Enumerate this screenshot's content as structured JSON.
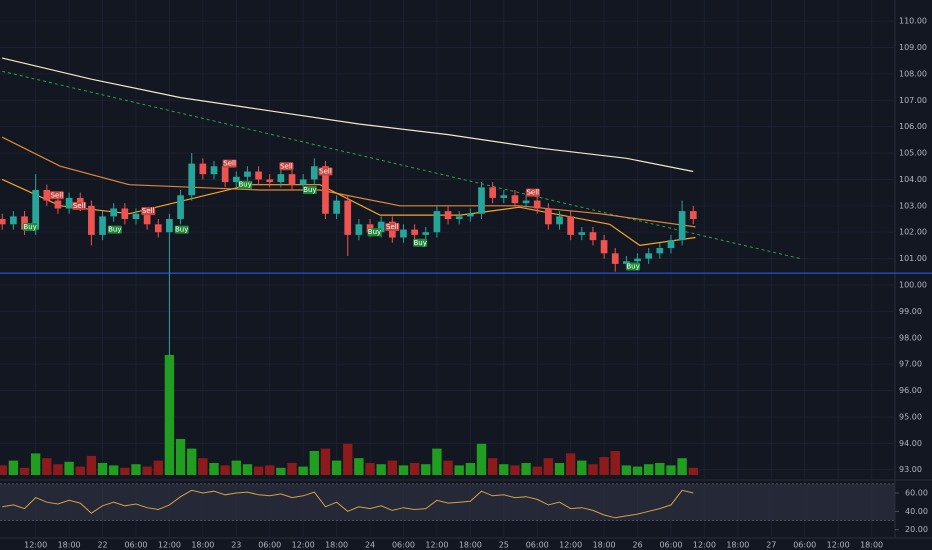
{
  "chart_data": {
    "type": "candlestick",
    "open": [
      102.5,
      102.3,
      102.6,
      102.1,
      103.6,
      103.2,
      102.9,
      103.3,
      103.0,
      101.9,
      102.6,
      102.9,
      102.5,
      102.7,
      102.3,
      102.0,
      102.5,
      103.4,
      104.6,
      104.2,
      104.5,
      103.9,
      104.1,
      104.3,
      104.0,
      103.9,
      104.2,
      103.8,
      104.0,
      104.5,
      102.7,
      103.2,
      101.9,
      102.3,
      102.0,
      102.4,
      101.8,
      102.1,
      101.9,
      102.0,
      102.8,
      102.5,
      102.6,
      102.7,
      103.7,
      103.3,
      103.4,
      103.1,
      103.2,
      102.9,
      102.3,
      102.6,
      101.9,
      102.0,
      101.7,
      101.2,
      100.8,
      100.9,
      101.0,
      101.2,
      101.4,
      101.7,
      102.8
    ],
    "high": [
      102.7,
      102.8,
      102.8,
      104.2,
      103.8,
      103.4,
      103.5,
      103.5,
      103.2,
      102.8,
      103.1,
      103.1,
      102.9,
      102.9,
      102.5,
      102.7,
      103.6,
      105.0,
      104.8,
      104.7,
      104.7,
      104.3,
      104.5,
      104.5,
      104.2,
      104.4,
      104.4,
      104.2,
      104.8,
      104.7,
      103.4,
      103.4,
      102.5,
      102.5,
      102.6,
      102.6,
      102.3,
      102.3,
      102.2,
      103.0,
      103.0,
      102.8,
      102.9,
      103.9,
      103.9,
      103.6,
      103.6,
      103.4,
      103.4,
      103.1,
      102.8,
      102.8,
      102.2,
      102.2,
      101.9,
      101.4,
      101.1,
      101.2,
      101.4,
      101.6,
      101.9,
      103.2,
      103.0
    ],
    "low": [
      102.1,
      102.1,
      101.9,
      101.9,
      103.0,
      102.7,
      102.7,
      102.8,
      101.5,
      101.7,
      102.4,
      102.3,
      102.3,
      102.1,
      101.8,
      97.3,
      102.3,
      103.2,
      104.0,
      104.0,
      103.7,
      103.7,
      103.9,
      103.8,
      103.7,
      103.7,
      103.6,
      103.6,
      103.8,
      102.5,
      102.5,
      101.1,
      101.7,
      101.8,
      101.8,
      101.6,
      101.6,
      101.7,
      101.7,
      101.8,
      102.3,
      102.3,
      102.4,
      102.5,
      103.1,
      103.1,
      102.9,
      102.9,
      102.7,
      102.1,
      102.1,
      101.7,
      101.7,
      101.5,
      101.0,
      100.5,
      100.6,
      100.7,
      100.8,
      101.0,
      101.2,
      101.5,
      102.3
    ],
    "close": [
      102.3,
      102.6,
      102.1,
      103.6,
      103.2,
      102.9,
      103.3,
      103.0,
      101.9,
      102.6,
      102.9,
      102.5,
      102.7,
      102.3,
      102.0,
      102.5,
      103.4,
      104.6,
      104.2,
      104.5,
      103.9,
      104.1,
      104.3,
      104.0,
      103.9,
      104.2,
      103.8,
      104.0,
      104.5,
      102.7,
      103.2,
      101.9,
      102.3,
      102.0,
      102.4,
      101.8,
      102.1,
      101.9,
      102.0,
      102.8,
      102.5,
      102.6,
      102.7,
      103.7,
      103.3,
      103.4,
      103.1,
      103.2,
      102.9,
      102.3,
      102.6,
      101.9,
      102.0,
      101.7,
      101.2,
      100.8,
      100.9,
      101.0,
      101.2,
      101.4,
      101.7,
      102.8,
      102.5
    ],
    "volume": [
      8,
      12,
      6,
      18,
      14,
      9,
      11,
      7,
      16,
      10,
      8,
      6,
      9,
      7,
      12,
      100,
      30,
      22,
      14,
      10,
      8,
      12,
      9,
      7,
      8,
      6,
      10,
      7,
      20,
      22,
      12,
      26,
      14,
      10,
      9,
      12,
      8,
      10,
      9,
      22,
      12,
      8,
      10,
      26,
      14,
      9,
      8,
      10,
      7,
      14,
      10,
      18,
      12,
      9,
      15,
      20,
      8,
      7,
      9,
      10,
      8,
      14,
      6
    ],
    "volume_lim": [
      0,
      100
    ],
    "up_color": "#26a69a",
    "down_color": "#ef5350",
    "volume_up_color": "#1f9e1f",
    "volume_down_color": "#8e1b1b",
    "xlim": [
      -0.2,
      80.1
    ],
    "xticks": [
      {
        "value": 3,
        "label": "12:00"
      },
      {
        "value": 6,
        "label": "18:00"
      },
      {
        "value": 9,
        "label": "22"
      },
      {
        "value": 12,
        "label": "06:00"
      },
      {
        "value": 15,
        "label": "12:00"
      },
      {
        "value": 18,
        "label": "18:00"
      },
      {
        "value": 21,
        "label": "23"
      },
      {
        "value": 24,
        "label": "06:00"
      },
      {
        "value": 27,
        "label": "12:00"
      },
      {
        "value": 30,
        "label": "18:00"
      },
      {
        "value": 33,
        "label": "24"
      },
      {
        "value": 36,
        "label": "06:00"
      },
      {
        "value": 39,
        "label": "12:00"
      },
      {
        "value": 42,
        "label": "18:00"
      },
      {
        "value": 45,
        "label": "25"
      },
      {
        "value": 48,
        "label": "06:00"
      },
      {
        "value": 51,
        "label": "12:00"
      },
      {
        "value": 54,
        "label": "18:00"
      },
      {
        "value": 57,
        "label": "26"
      },
      {
        "value": 60,
        "label": "06:00"
      },
      {
        "value": 63,
        "label": "12:00"
      },
      {
        "value": 66,
        "label": "18:00"
      },
      {
        "value": 69,
        "label": "27"
      },
      {
        "value": 72,
        "label": "06:00"
      },
      {
        "value": 75,
        "label": "12:00"
      },
      {
        "value": 78,
        "label": "18:00"
      }
    ],
    "ylim": [
      92.8,
      110.8
    ],
    "yticks": [
      {
        "value": 93,
        "label": "93.00"
      },
      {
        "value": 94,
        "label": "94.00"
      },
      {
        "value": 95,
        "label": "95.00"
      },
      {
        "value": 96,
        "label": "96.00"
      },
      {
        "value": 97,
        "label": "97.00"
      },
      {
        "value": 98,
        "label": "98.00"
      },
      {
        "value": 99,
        "label": "99.00"
      },
      {
        "value": 100,
        "label": "100.00"
      },
      {
        "value": 101,
        "label": "101.00"
      },
      {
        "value": 102,
        "label": "102.00"
      },
      {
        "value": 103,
        "label": "103.00"
      },
      {
        "value": 104,
        "label": "104.00"
      },
      {
        "value": 105,
        "label": "105.00"
      },
      {
        "value": 106,
        "label": "106.00"
      },
      {
        "value": 107,
        "label": "107.00"
      },
      {
        "value": 108,
        "label": "108.00"
      },
      {
        "value": 109,
        "label": "109.00"
      },
      {
        "value": 110,
        "label": "110.00"
      }
    ],
    "grid": true,
    "lines": [
      {
        "color": "#f3e9c6",
        "dashed": false,
        "x": [
          0,
          8,
          16,
          24,
          32,
          40,
          48,
          56,
          62
        ],
        "values": [
          108.6,
          107.8,
          107.1,
          106.6,
          106.1,
          105.7,
          105.2,
          104.8,
          104.3
        ]
      },
      {
        "color": "#26a641",
        "dashed": true,
        "x": [
          0,
          71.6
        ],
        "values": [
          108.1,
          101.0
        ]
      },
      {
        "color": "#e0873a",
        "dashed": false,
        "x": [
          0,
          5.2,
          11.4,
          23.1,
          28.5,
          35.7,
          46.4,
          53.6,
          62.2
        ],
        "values": [
          105.6,
          104.5,
          103.8,
          103.6,
          103.6,
          103.0,
          103.0,
          102.7,
          102.2
        ]
      },
      {
        "color": "#f5a623",
        "dashed": false,
        "x": [
          0,
          5.2,
          11.4,
          22.2,
          28.5,
          33.9,
          41.1,
          46.4,
          54.5,
          57.2,
          62.2
        ],
        "values": [
          104.0,
          103.0,
          102.7,
          103.8,
          103.8,
          102.65,
          102.65,
          102.95,
          102.3,
          101.5,
          101.8
        ]
      }
    ],
    "hline": {
      "value": 100.45,
      "color": "#2962ff"
    },
    "signals": [
      {
        "label": "Buy",
        "x": 2.5,
        "y": 102.2
      },
      {
        "label": "Sell",
        "x": 4.9,
        "y": 103.4
      },
      {
        "label": "Sell",
        "x": 6.9,
        "y": 103.0
      },
      {
        "label": "Buy",
        "x": 10.1,
        "y": 102.1
      },
      {
        "label": "Sell",
        "x": 13.1,
        "y": 102.8
      },
      {
        "label": "Buy",
        "x": 16.1,
        "y": 102.1
      },
      {
        "label": "Sell",
        "x": 20.4,
        "y": 104.6
      },
      {
        "label": "Buy",
        "x": 21.8,
        "y": 103.8
      },
      {
        "label": "Sell",
        "x": 25.5,
        "y": 104.5
      },
      {
        "label": "Buy",
        "x": 27.6,
        "y": 103.6
      },
      {
        "label": "Sell",
        "x": 29.0,
        "y": 104.3
      },
      {
        "label": "Buy",
        "x": 33.4,
        "y": 102.0
      },
      {
        "label": "Sell",
        "x": 35.0,
        "y": 102.2
      },
      {
        "label": "Buy",
        "x": 37.5,
        "y": 101.6
      },
      {
        "label": "Sell",
        "x": 47.6,
        "y": 103.5
      },
      {
        "label": "Buy",
        "x": 56.6,
        "y": 100.7
      }
    ],
    "rsi": {
      "color": "#d4a046",
      "values": [
        45,
        47,
        43,
        55,
        50,
        48,
        52,
        49,
        38,
        46,
        50,
        46,
        48,
        44,
        42,
        47,
        56,
        63,
        60,
        62,
        58,
        60,
        61,
        58,
        57,
        59,
        55,
        57,
        61,
        45,
        50,
        40,
        45,
        43,
        46,
        41,
        44,
        42,
        43,
        52,
        49,
        50,
        51,
        62,
        57,
        58,
        55,
        56,
        53,
        47,
        50,
        43,
        44,
        41,
        36,
        33,
        35,
        37,
        40,
        43,
        47,
        63,
        60
      ],
      "ylim": [
        12,
        72
      ],
      "yticks": [
        {
          "value": 60,
          "label": "60.00"
        },
        {
          "value": 40,
          "label": "40.00"
        },
        {
          "value": 20,
          "label": "20.00"
        }
      ],
      "band": [
        30,
        70
      ]
    }
  }
}
